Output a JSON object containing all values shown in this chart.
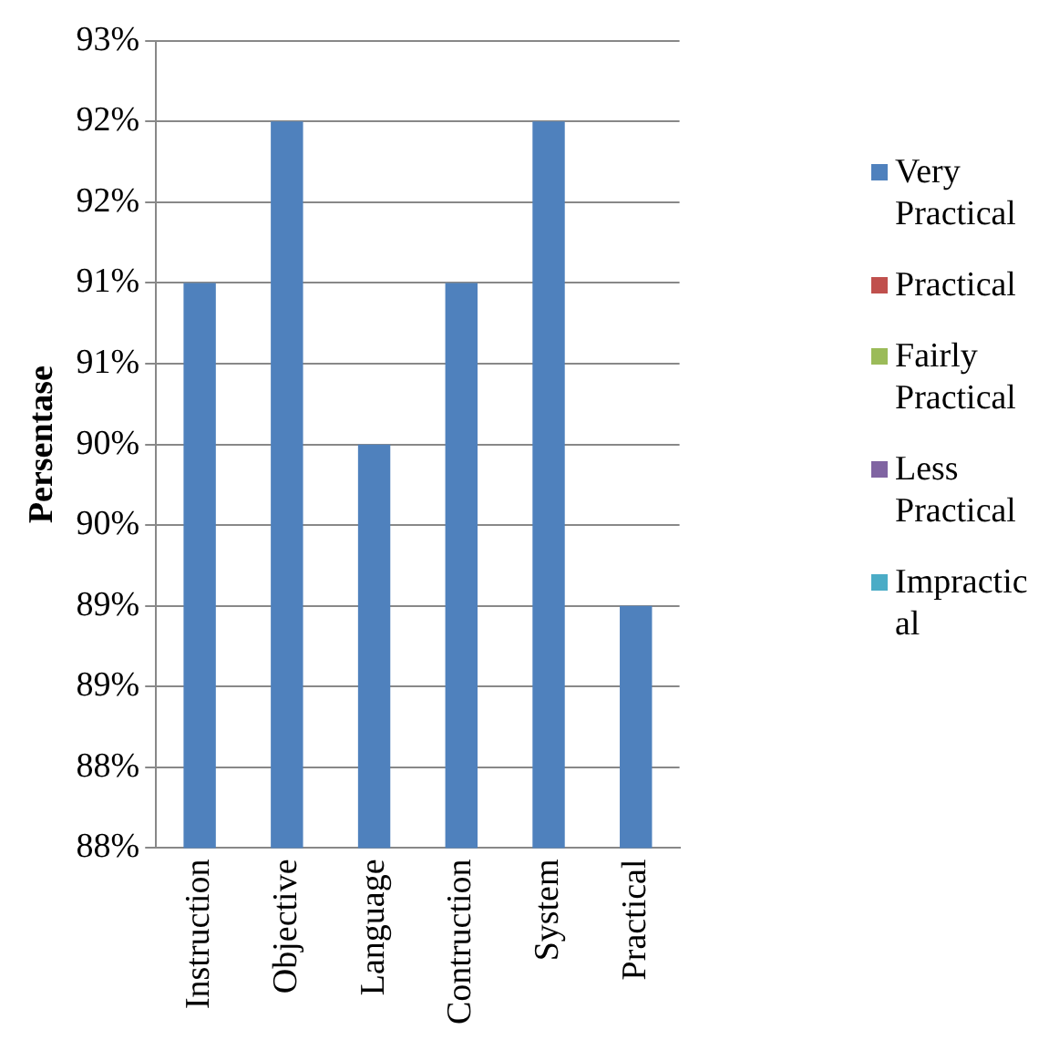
{
  "chart_data": {
    "type": "bar",
    "ylabel": "Persentase",
    "categories": [
      "Instruction",
      "Objective",
      "Language",
      "Contruction",
      "System",
      "Practical"
    ],
    "series": [
      {
        "name": "Very Practical",
        "color": "#4f81bd",
        "values": [
          91.5,
          92.5,
          90.5,
          91.5,
          92.5,
          89.5
        ]
      },
      {
        "name": "Practical",
        "color": "#c0504d",
        "values": [
          null,
          null,
          null,
          null,
          null,
          null
        ]
      },
      {
        "name": "Fairly Practical",
        "color": "#9bbb59",
        "values": [
          null,
          null,
          null,
          null,
          null,
          null
        ]
      },
      {
        "name": "Less Practical",
        "color": "#8064a2",
        "values": [
          null,
          null,
          null,
          null,
          null,
          null
        ]
      },
      {
        "name": "Impractical",
        "color": "#4bacc6",
        "values": [
          null,
          null,
          null,
          null,
          null,
          null
        ]
      }
    ],
    "ylim": [
      88,
      93
    ],
    "yticks": [
      {
        "value": 88,
        "label": "88%"
      },
      {
        "value": 88.5,
        "label": "88%"
      },
      {
        "value": 89,
        "label": "89%"
      },
      {
        "value": 89.5,
        "label": "89%"
      },
      {
        "value": 90,
        "label": "90%"
      },
      {
        "value": 90.5,
        "label": "90%"
      },
      {
        "value": 91,
        "label": "91%"
      },
      {
        "value": 91.5,
        "label": "91%"
      },
      {
        "value": 92,
        "label": "92%"
      },
      {
        "value": 92.5,
        "label": "92%"
      },
      {
        "value": 93,
        "label": "93%"
      }
    ],
    "grid": "y",
    "legend": "right"
  }
}
